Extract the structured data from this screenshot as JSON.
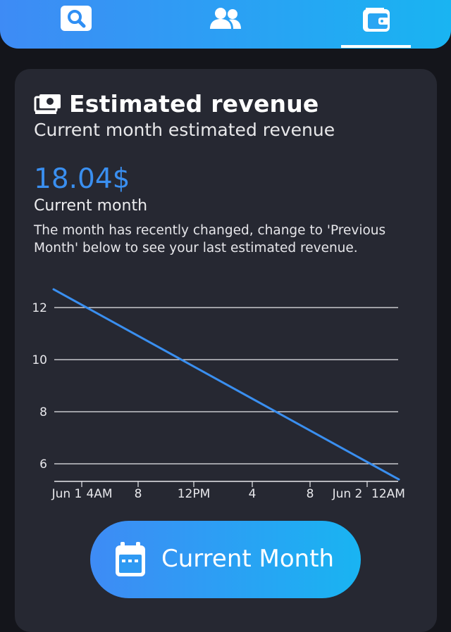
{
  "nav": {
    "tabs": [
      {
        "icon": "search-icon",
        "active": false
      },
      {
        "icon": "users-icon",
        "active": false
      },
      {
        "icon": "wallet-icon",
        "active": true
      }
    ]
  },
  "card": {
    "title": "Estimated revenue",
    "title_icon": "money-icon",
    "subtitle": "Current month estimated revenue",
    "amount": "18.04$",
    "amount_label": "Current month",
    "notice": "The month has recently changed, change to 'Previous Month' below to see your last estimated revenue."
  },
  "chart_data": {
    "type": "line",
    "x_tick_labels": [
      "Jun 1",
      "4AM",
      "8",
      "12PM",
      "4",
      "8",
      "Jun 2",
      "12AM"
    ],
    "y_tick_labels": [
      "12",
      "10",
      "8",
      "6"
    ],
    "series": [
      {
        "x": [
          "Jun 1 12AM",
          "Jun 2 12AM"
        ],
        "y": [
          12.7,
          5.4
        ]
      }
    ],
    "ylim": [
      5.4,
      12.7
    ],
    "grid": "horizontal",
    "colors": {
      "line": "#3a8ff0",
      "grid": "#e8e8ec"
    }
  },
  "button": {
    "label": "Current Month",
    "icon": "calendar-icon"
  },
  "colors": {
    "accent": "#3a8ff0",
    "gradient_start": "#3e8bf5",
    "gradient_end": "#19b4f2",
    "background": "#14151b",
    "card": "#262832"
  }
}
